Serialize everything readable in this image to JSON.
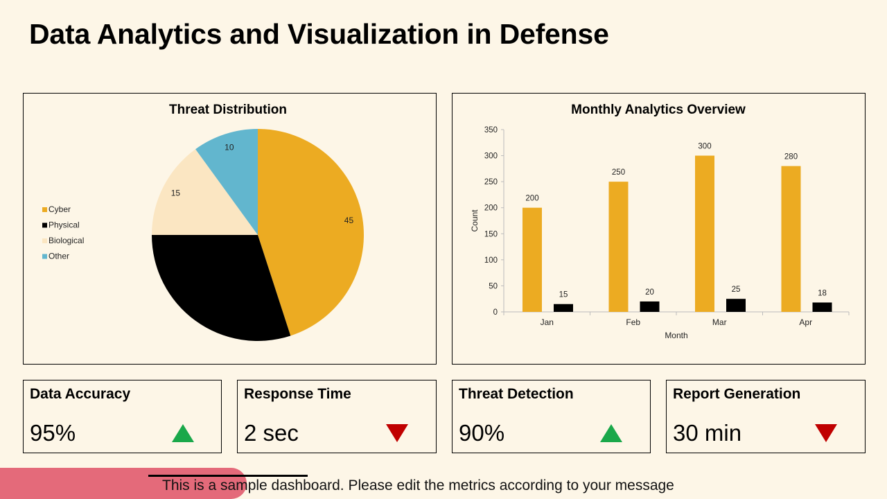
{
  "title": "Data Analytics and Visualization in Defense",
  "chart_data": [
    {
      "type": "pie",
      "title": "Threat Distribution",
      "categories": [
        "Cyber",
        "Physical",
        "Biological",
        "Other"
      ],
      "values": [
        45,
        30,
        15,
        10
      ],
      "data_labels": [
        "45",
        "",
        "15",
        "10"
      ],
      "colors": [
        "#ecab22",
        "#000000",
        "#fbe6c2",
        "#62b6ce"
      ],
      "legend_position": "left"
    },
    {
      "type": "bar",
      "title": "Monthly Analytics Overview",
      "categories": [
        "Jan",
        "Feb",
        "Mar",
        "Apr"
      ],
      "series": [
        {
          "values": [
            200,
            250,
            300,
            280
          ],
          "color": "#ecab22"
        },
        {
          "values": [
            15,
            20,
            25,
            18
          ],
          "color": "#000000"
        }
      ],
      "xlabel": "Month",
      "ylabel": "Count",
      "ylim": [
        0,
        350
      ],
      "yticks": [
        0,
        50,
        100,
        150,
        200,
        250,
        300,
        350
      ],
      "grid": false,
      "data_labels": true
    }
  ],
  "kpis": [
    {
      "label": "Data Accuracy",
      "value": "95%",
      "trend": "up",
      "trend_color": "#1aa84a"
    },
    {
      "label": "Response Time",
      "value": "2 sec",
      "trend": "down",
      "trend_color": "#c00000"
    },
    {
      "label": "Threat Detection",
      "value": "90%",
      "trend": "up",
      "trend_color": "#1aa84a"
    },
    {
      "label": "Report Generation",
      "value": "30 min",
      "trend": "down",
      "trend_color": "#c00000"
    }
  ],
  "footer": {
    "text": "This is a sample dashboard. Please edit the metrics according to your message"
  }
}
